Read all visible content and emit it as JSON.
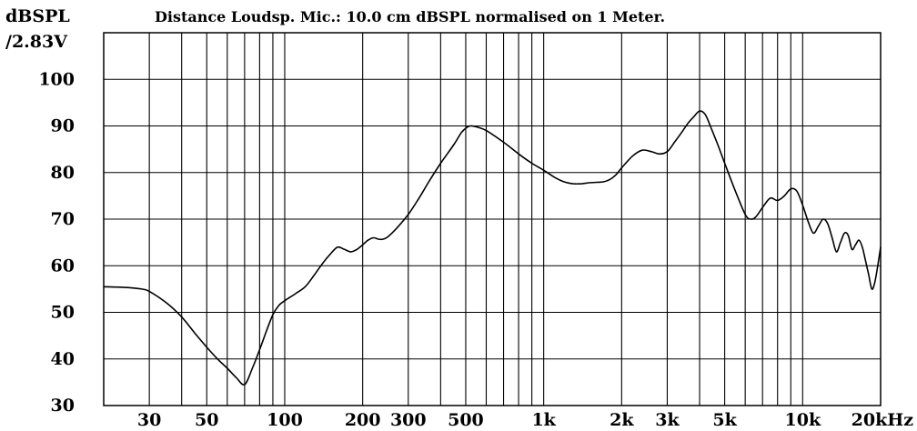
{
  "chart_data": {
    "type": "line",
    "title": "Distance Loudsp. Mic.: 10.0 cm dBSPL normalised on 1 Meter.",
    "ylabel_line1": "dBSPL",
    "ylabel_line2": "/2.83V",
    "xscale": "log",
    "xlim": [
      20,
      20000
    ],
    "ylim": [
      30,
      110
    ],
    "grid": true,
    "yticks": [
      {
        "value": 30,
        "label": "30"
      },
      {
        "value": 40,
        "label": "40"
      },
      {
        "value": 50,
        "label": "50"
      },
      {
        "value": 60,
        "label": "60"
      },
      {
        "value": 70,
        "label": "70"
      },
      {
        "value": 80,
        "label": "80"
      },
      {
        "value": 90,
        "label": "90"
      },
      {
        "value": 100,
        "label": "100"
      }
    ],
    "xticks": [
      {
        "value": 30,
        "label": "30"
      },
      {
        "value": 50,
        "label": "50"
      },
      {
        "value": 100,
        "label": "100"
      },
      {
        "value": 200,
        "label": "200"
      },
      {
        "value": 300,
        "label": "300"
      },
      {
        "value": 500,
        "label": "500"
      },
      {
        "value": 1000,
        "label": "1k"
      },
      {
        "value": 2000,
        "label": "2k"
      },
      {
        "value": 3000,
        "label": "3k"
      },
      {
        "value": 5000,
        "label": "5k"
      },
      {
        "value": 10000,
        "label": "10k"
      },
      {
        "value": 20000,
        "label": "20kHz"
      }
    ],
    "series": [
      {
        "x": [
          20,
          25,
          28,
          30,
          35,
          40,
          45,
          50,
          55,
          60,
          65,
          70,
          75,
          80,
          85,
          90,
          95,
          100,
          110,
          120,
          130,
          140,
          150,
          160,
          170,
          180,
          190,
          200,
          210,
          220,
          230,
          240,
          250,
          270,
          300,
          330,
          360,
          400,
          450,
          480,
          500,
          520,
          550,
          600,
          700,
          800,
          900,
          1000,
          1100,
          1200,
          1300,
          1400,
          1500,
          1600,
          1700,
          1800,
          1900,
          2000,
          2200,
          2400,
          2600,
          2800,
          3000,
          3200,
          3400,
          3600,
          3800,
          4000,
          4200,
          4400,
          4700,
          5000,
          5500,
          6000,
          6300,
          6600,
          7000,
          7500,
          8000,
          8500,
          9000,
          9500,
          10000,
          10500,
          11000,
          11500,
          12000,
          12500,
          13000,
          13500,
          14000,
          14500,
          15000,
          15500,
          16000,
          16500,
          17000,
          17500,
          18000,
          18500,
          19000,
          19500,
          20000
        ],
        "y": [
          55.5,
          55.3,
          55,
          54.5,
          52,
          49,
          45.5,
          42.5,
          40,
          38,
          36,
          34.5,
          38,
          42,
          46,
          49.5,
          51.5,
          52.5,
          54,
          55.5,
          58,
          60.5,
          62.5,
          64,
          63.5,
          63,
          63.5,
          64.5,
          65.5,
          66,
          65.7,
          65.7,
          66.2,
          68,
          71,
          74.5,
          78,
          82,
          86,
          88.5,
          89.5,
          90,
          89.8,
          89,
          86.5,
          84,
          82,
          80.5,
          79,
          78,
          77.6,
          77.6,
          77.8,
          77.9,
          78,
          78.5,
          79.5,
          81,
          83.5,
          84.8,
          84.5,
          84,
          84.5,
          86.5,
          88.5,
          90.5,
          92,
          93.2,
          92.5,
          90,
          86,
          82,
          76,
          71,
          70,
          70.5,
          72.5,
          74.5,
          74,
          75,
          76.5,
          76,
          73,
          69.5,
          67,
          68.5,
          70,
          69,
          66,
          63,
          65,
          67,
          66.5,
          63.5,
          64.5,
          65.5,
          64,
          61,
          58,
          55,
          56.5,
          60,
          64
        ]
      }
    ]
  }
}
